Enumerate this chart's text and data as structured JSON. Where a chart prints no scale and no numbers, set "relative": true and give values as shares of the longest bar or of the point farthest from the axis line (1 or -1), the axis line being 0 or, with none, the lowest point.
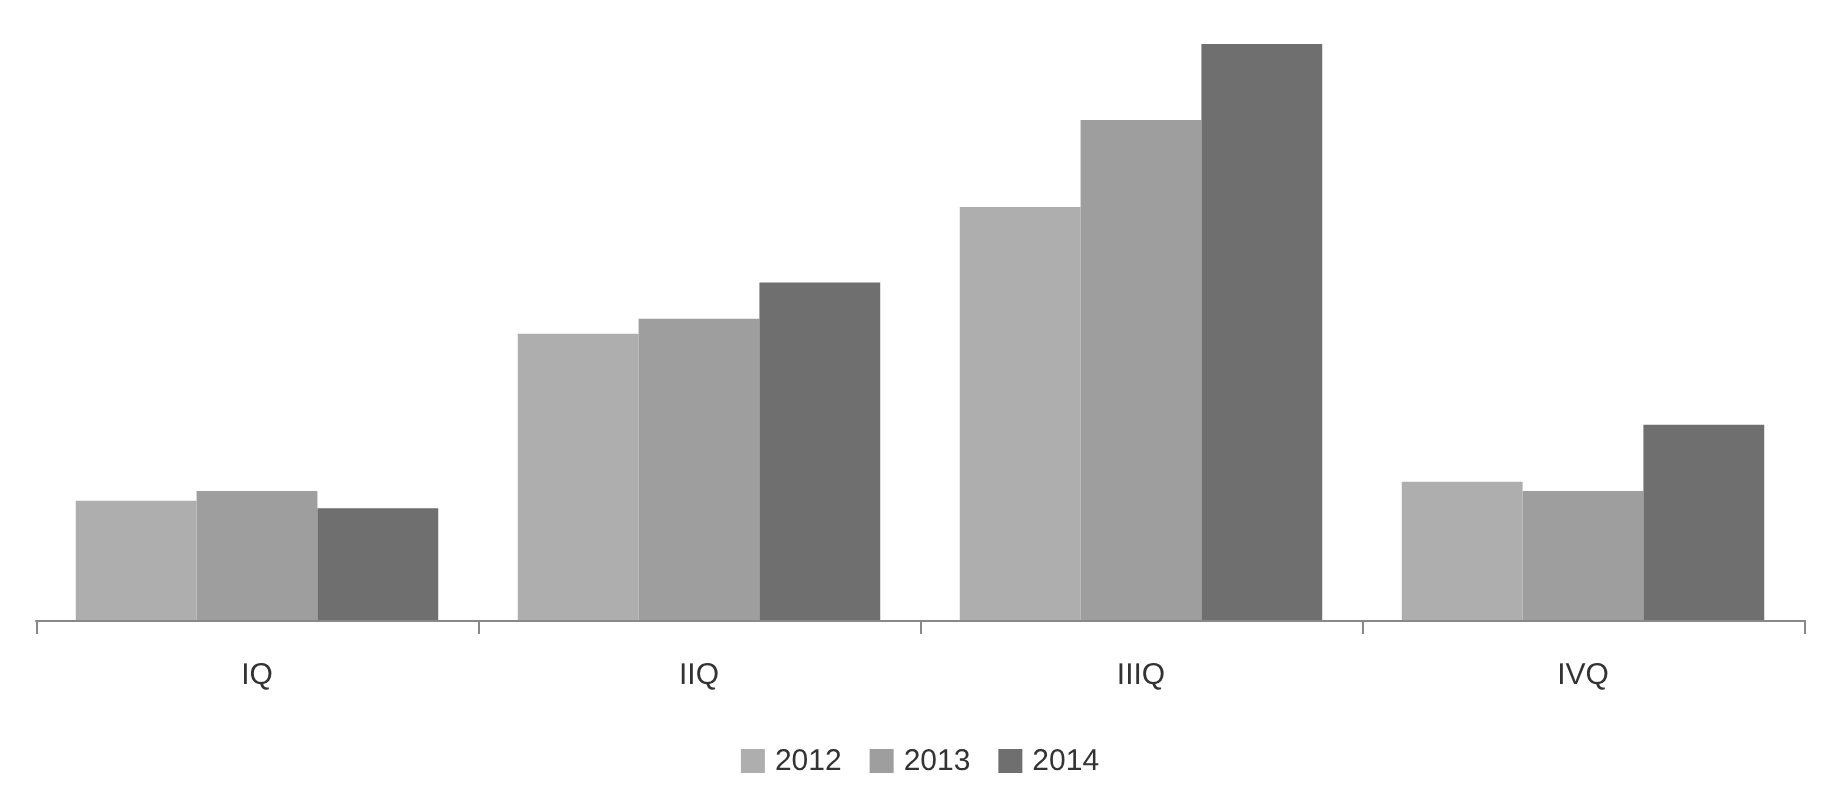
{
  "chart_data": {
    "type": "bar",
    "relative": true,
    "categories": [
      "IQ",
      "IIQ",
      "IIIQ",
      "IVQ"
    ],
    "series": [
      {
        "name": "2012",
        "color": "#aeaeae",
        "values": [
          0.207,
          0.497,
          0.717,
          0.24
        ]
      },
      {
        "name": "2013",
        "color": "#9e9e9e",
        "values": [
          0.224,
          0.523,
          0.868,
          0.224
        ]
      },
      {
        "name": "2014",
        "color": "#6f6f6f",
        "values": [
          0.194,
          0.586,
          1,
          0.339
        ]
      }
    ],
    "legend": "bottom"
  }
}
